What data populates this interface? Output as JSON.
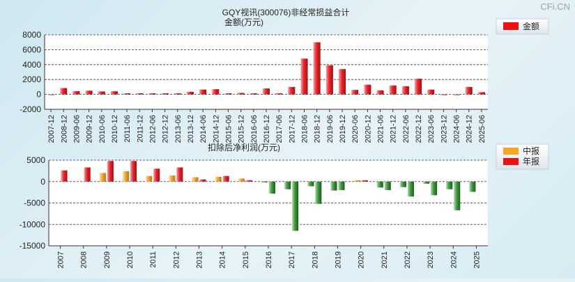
{
  "watermark": "CFi.CN",
  "colors": {
    "accent_red": "#ee1111",
    "accent_orange": "#f5a623",
    "accent_green": "#3f9a3f"
  },
  "chart_data": [
    {
      "type": "bar",
      "title": "GQY视讯(300076)非经常损益合计",
      "subtitle": "金额(万元)",
      "legend": [
        {
          "label": "金额",
          "color": "#ee1111"
        }
      ],
      "ylim": [
        -2000,
        8000
      ],
      "yticks": [
        8000,
        6000,
        4000,
        2000,
        0,
        -2000
      ],
      "ytick_labels": [
        "8000",
        "6000",
        "4000",
        "2000",
        "0",
        "-2000"
      ],
      "categories": [
        "2007-12",
        "2008-12",
        "2009-06",
        "2009-12",
        "2010-06",
        "2010-12",
        "2011-06",
        "2011-12",
        "2012-06",
        "2012-12",
        "2013-06",
        "2013-12",
        "2014-06",
        "2014-12",
        "2015-06",
        "2015-12",
        "2016-06",
        "2016-12",
        "2017-06",
        "2017-12",
        "2018-06",
        "2018-12",
        "2019-06",
        "2019-12",
        "2020-06",
        "2020-12",
        "2021-06",
        "2021-12",
        "2022-06",
        "2022-12",
        "2023-06",
        "2023-12",
        "2024-06",
        "2024-12",
        "2025-06"
      ],
      "values": [
        -60,
        850,
        430,
        500,
        400,
        420,
        150,
        150,
        150,
        150,
        150,
        350,
        650,
        700,
        150,
        200,
        150,
        800,
        150,
        1000,
        4800,
        7000,
        3900,
        3400,
        600,
        1300,
        550,
        1200,
        1100,
        2100,
        650,
        0,
        0,
        1000,
        300
      ]
    },
    {
      "type": "bar",
      "title": "扣除后净利润(万元)",
      "legend": [
        {
          "label": "中报",
          "color": "#f5a623"
        },
        {
          "label": "年报",
          "color": "#ee1111"
        }
      ],
      "ylim": [
        -15000,
        5000
      ],
      "yticks": [
        5000,
        0,
        -5000,
        -10000,
        -15000
      ],
      "ytick_labels": [
        "5000",
        "0",
        "-5000",
        "-10000",
        "-15000"
      ],
      "categories": [
        "2007",
        "2008",
        "2009",
        "2010",
        "2011",
        "2012",
        "2013",
        "2014",
        "2015",
        "2016",
        "2017",
        "2018",
        "2019",
        "2020",
        "2021",
        "2022",
        "2023",
        "2024",
        "2025"
      ],
      "series": [
        {
          "name": "中报",
          "values": [
            null,
            null,
            2000,
            2400,
            1300,
            1400,
            1000,
            1100,
            700,
            -200,
            -1800,
            -1100,
            -2100,
            300,
            -1400,
            -1300,
            -500,
            -1800,
            -2400
          ]
        },
        {
          "name": "年报",
          "values": [
            2600,
            3300,
            4800,
            4800,
            3000,
            3300,
            500,
            1300,
            300,
            -2800,
            -11500,
            -5200,
            -2000,
            300,
            -2000,
            -3500,
            -3200,
            -6700,
            null
          ]
        }
      ]
    }
  ]
}
